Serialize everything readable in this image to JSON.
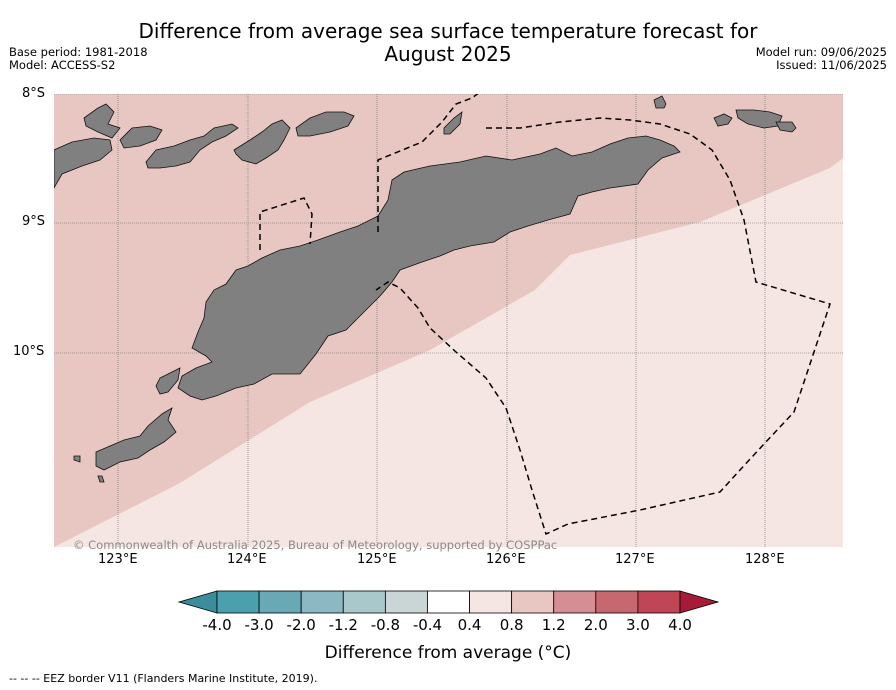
{
  "header": {
    "title_line1": "Difference from average sea surface temperature forecast for",
    "title_line2": "August 2025",
    "base_period": "Base period: 1981-2018",
    "model": "Model: ACCESS-S2",
    "model_run": "Model run: 09/06/2025",
    "issued": "Issued: 11/06/2025"
  },
  "map": {
    "lat_labels": [
      "8°S",
      "9°S",
      "10°S"
    ],
    "lon_labels": [
      "123°E",
      "124°E",
      "125°E",
      "126°E",
      "127°E",
      "128°E"
    ],
    "copyright": "© Commonwealth of Australia 2025, Bureau of Meteorology, supported by COSPPac",
    "colors": {
      "land": "#808080",
      "anomaly_0_4_to_0_8": "#f5e6e4",
      "anomaly_0_8_to_1_2": "#e8c6c1"
    }
  },
  "colorbar": {
    "ticks": [
      "-4.0",
      "-3.0",
      "-2.0",
      "-1.2",
      "-0.8",
      "-0.4",
      "0.4",
      "0.8",
      "1.2",
      "2.0",
      "3.0",
      "4.0"
    ],
    "colors": [
      "#3a8e9b",
      "#4aa0ad",
      "#68a9b5",
      "#8bb8c2",
      "#a9c8cc",
      "#cad5d6",
      "#ffffff",
      "#f5e6e4",
      "#e8c6c1",
      "#d48e94",
      "#c76870",
      "#c04655",
      "#a61c36"
    ],
    "label": "Difference from average (°C)"
  },
  "footer": {
    "eez_note": "--  --  -- EEZ border V11 (Flanders Marine Institute, 2019)."
  }
}
